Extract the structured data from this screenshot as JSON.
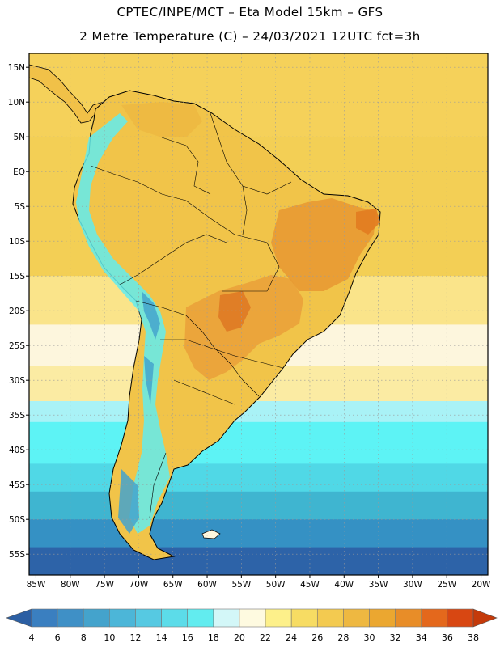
{
  "title_line1": "CPTEC/INPE/MCT –  Eta Model 15km – GFS",
  "title_line2": "2 Metre Temperature (C) – 24/03/2021 12UTC fct=3h",
  "map": {
    "lon_range": [
      -86,
      -19
    ],
    "lat_range": [
      -58,
      17
    ],
    "lat_labels": [
      "15N",
      "10N",
      "5N",
      "EQ",
      "5S",
      "10S",
      "15S",
      "20S",
      "25S",
      "30S",
      "35S",
      "40S",
      "45S",
      "50S",
      "55S"
    ],
    "lat_values": [
      15,
      10,
      5,
      0,
      -5,
      -10,
      -15,
      -20,
      -25,
      -30,
      -35,
      -40,
      -45,
      -50,
      -55
    ],
    "lon_labels": [
      "85W",
      "80W",
      "75W",
      "70W",
      "65W",
      "60W",
      "55W",
      "50W",
      "45W",
      "40W",
      "35W",
      "30W",
      "25W",
      "20W"
    ],
    "lon_values": [
      -85,
      -80,
      -75,
      -70,
      -65,
      -60,
      -55,
      -50,
      -45,
      -40,
      -35,
      -30,
      -25,
      -20
    ],
    "ocean_bands": [
      {
        "lat_top": 17,
        "lat_bottom": 5,
        "color": "#f5d15a"
      },
      {
        "lat_top": 5,
        "lat_bottom": -15,
        "color": "#f3cf55"
      },
      {
        "lat_top": -15,
        "lat_bottom": -22,
        "color": "#fae48a"
      },
      {
        "lat_top": -22,
        "lat_bottom": -28,
        "color": "#fdf6dd"
      },
      {
        "lat_top": -28,
        "lat_bottom": -33,
        "color": "#fbeba3"
      },
      {
        "lat_top": -33,
        "lat_bottom": -36,
        "color": "#a9f2f6"
      },
      {
        "lat_top": -36,
        "lat_bottom": -42,
        "color": "#5df3f5"
      },
      {
        "lat_top": -42,
        "lat_bottom": -46,
        "color": "#50d8e6"
      },
      {
        "lat_top": -46,
        "lat_bottom": -50,
        "color": "#3fb5d0"
      },
      {
        "lat_top": -50,
        "lat_bottom": -54,
        "color": "#3591c4"
      },
      {
        "lat_top": -54,
        "lat_bottom": -58,
        "color": "#2d63a8"
      }
    ]
  },
  "colorbar": {
    "labels": [
      "4",
      "6",
      "8",
      "10",
      "12",
      "14",
      "16",
      "18",
      "20",
      "22",
      "24",
      "26",
      "28",
      "30",
      "32",
      "34",
      "36",
      "38"
    ],
    "colors": [
      "#3a7fc0",
      "#3f90c6",
      "#44a3cc",
      "#4cb6d8",
      "#56c9e2",
      "#5cdce9",
      "#62ecef",
      "#d3f7f8",
      "#fefae0",
      "#fdf08a",
      "#f7dc63",
      "#f3ca50",
      "#eeb841",
      "#eba730",
      "#e88d28",
      "#e4681c",
      "#d84712"
    ],
    "under_color": "#2c5fa3",
    "over_color": "#c43a0a"
  }
}
